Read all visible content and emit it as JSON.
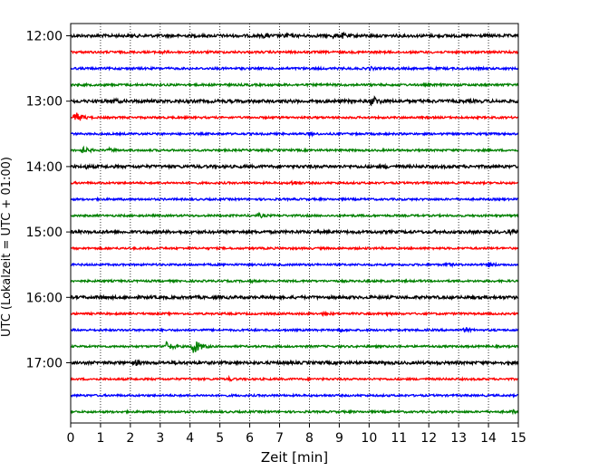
{
  "chart_data": {
    "type": "line",
    "xlabel": "Zeit  [min]",
    "ylabel": "UTC (Lokalzeit = UTC + 01:00)",
    "xlim": [
      0,
      15
    ],
    "x_ticks": [
      "0",
      "1",
      "2",
      "3",
      "4",
      "5",
      "6",
      "7",
      "8",
      "9",
      "10",
      "11",
      "12",
      "13",
      "14",
      "15"
    ],
    "y_ticks": [
      "12:00",
      "13:00",
      "14:00",
      "15:00",
      "16:00",
      "17:00"
    ],
    "trace_interval_min": 15,
    "start_time": "12:00",
    "grid": "vertical dotted",
    "colors": [
      "#000000",
      "#ff0000",
      "#0000ff",
      "#008000"
    ],
    "series": [
      {
        "start": "12:00",
        "color": "#000000",
        "amp": 1.6,
        "events": [
          {
            "t": 6.5,
            "a": 2.5
          },
          {
            "t": 7.2,
            "a": 3
          },
          {
            "t": 8.8,
            "a": 2.5
          },
          {
            "t": 9.1,
            "a": 3
          }
        ]
      },
      {
        "start": "12:15",
        "color": "#ff0000",
        "amp": 1.2,
        "events": [
          {
            "t": 3.0,
            "a": 2
          }
        ]
      },
      {
        "start": "12:30",
        "color": "#0000ff",
        "amp": 1.2,
        "events": [
          {
            "t": 10.0,
            "a": 2
          }
        ]
      },
      {
        "start": "12:45",
        "color": "#008000",
        "amp": 1.2,
        "events": []
      },
      {
        "start": "13:00",
        "color": "#000000",
        "amp": 1.7,
        "events": [
          {
            "t": 1.4,
            "a": 3
          },
          {
            "t": 10.1,
            "a": 6
          }
        ]
      },
      {
        "start": "13:15",
        "color": "#ff0000",
        "amp": 1.1,
        "events": [
          {
            "t": 0.15,
            "a": 6
          }
        ]
      },
      {
        "start": "13:30",
        "color": "#0000ff",
        "amp": 1.1,
        "events": [
          {
            "t": 8.0,
            "a": 2
          }
        ]
      },
      {
        "start": "13:45",
        "color": "#008000",
        "amp": 1.1,
        "events": [
          {
            "t": 0.4,
            "a": 3.5
          },
          {
            "t": 1.3,
            "a": 2
          }
        ]
      },
      {
        "start": "14:00",
        "color": "#000000",
        "amp": 1.6,
        "events": [
          {
            "t": 0.5,
            "a": 2
          },
          {
            "t": 10.5,
            "a": 2
          }
        ]
      },
      {
        "start": "14:15",
        "color": "#ff0000",
        "amp": 1.1,
        "events": [
          {
            "t": 7.4,
            "a": 3
          }
        ]
      },
      {
        "start": "14:30",
        "color": "#0000ff",
        "amp": 1.1,
        "events": []
      },
      {
        "start": "14:45",
        "color": "#008000",
        "amp": 1.1,
        "events": [
          {
            "t": 6.3,
            "a": 2.5
          }
        ]
      },
      {
        "start": "15:00",
        "color": "#000000",
        "amp": 1.6,
        "events": [
          {
            "t": 14.7,
            "a": 2
          }
        ]
      },
      {
        "start": "15:15",
        "color": "#ff0000",
        "amp": 1.1,
        "events": []
      },
      {
        "start": "15:30",
        "color": "#0000ff",
        "amp": 1.1,
        "events": [
          {
            "t": 12.6,
            "a": 2
          },
          {
            "t": 14.0,
            "a": 2.5
          }
        ]
      },
      {
        "start": "15:45",
        "color": "#008000",
        "amp": 1.1,
        "events": [
          {
            "t": 6.0,
            "a": 1.5
          }
        ]
      },
      {
        "start": "16:00",
        "color": "#000000",
        "amp": 1.6,
        "events": [
          {
            "t": 1.0,
            "a": 2
          }
        ]
      },
      {
        "start": "16:15",
        "color": "#ff0000",
        "amp": 1.1,
        "events": [
          {
            "t": 8.5,
            "a": 2
          },
          {
            "t": 10.5,
            "a": 2
          }
        ]
      },
      {
        "start": "16:30",
        "color": "#0000ff",
        "amp": 1.1,
        "events": [
          {
            "t": 9.0,
            "a": 2
          },
          {
            "t": 13.2,
            "a": 2.5
          }
        ]
      },
      {
        "start": "16:45",
        "color": "#008000",
        "amp": 1.1,
        "events": [
          {
            "t": 3.2,
            "a": 5
          },
          {
            "t": 4.1,
            "a": 9
          }
        ]
      },
      {
        "start": "17:00",
        "color": "#000000",
        "amp": 1.6,
        "events": [
          {
            "t": 2.2,
            "a": 3
          },
          {
            "t": 3.5,
            "a": 2
          }
        ]
      },
      {
        "start": "17:15",
        "color": "#ff0000",
        "amp": 1.1,
        "events": [
          {
            "t": 5.3,
            "a": 2
          }
        ]
      },
      {
        "start": "17:30",
        "color": "#0000ff",
        "amp": 1.1,
        "events": []
      },
      {
        "start": "17:45",
        "color": "#008000",
        "amp": 1.1,
        "events": [
          {
            "t": 14.8,
            "a": 2
          }
        ]
      }
    ]
  }
}
